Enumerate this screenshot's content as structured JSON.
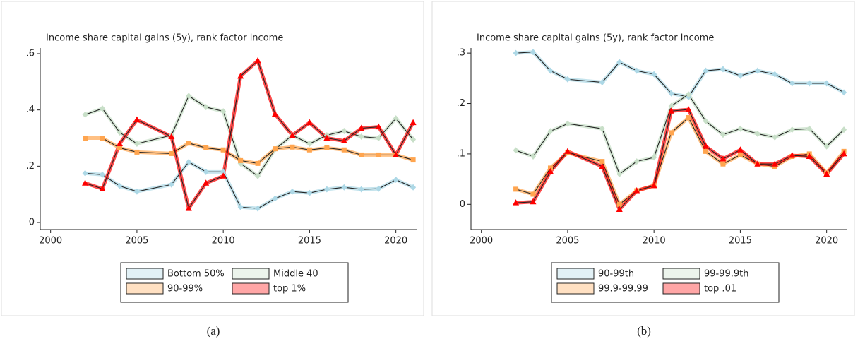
{
  "chart_data": [
    {
      "type": "line",
      "title": "Income share capital gains (5y), rank factor income",
      "panel_label": "(a)",
      "x": [
        2002,
        2003,
        2004,
        2005,
        2007,
        2008,
        2009,
        2010,
        2011,
        2012,
        2013,
        2014,
        2015,
        2016,
        2017,
        2018,
        2019,
        2020,
        2021
      ],
      "xlim": [
        1999.4,
        2021.2
      ],
      "xticks": [
        2000,
        2005,
        2010,
        2015,
        2020
      ],
      "ylim": [
        -0.025,
        0.62
      ],
      "yticks": [
        0,
        {
          "value": 0.2,
          "label": ".2"
        },
        {
          "value": 0.4,
          "label": ".4"
        },
        {
          "value": 0.6,
          "label": ".6"
        }
      ],
      "series": [
        {
          "name": "Bottom 50%",
          "color": "#add8e6",
          "marker": "diamond",
          "values": [
            0.175,
            0.17,
            0.13,
            0.11,
            0.135,
            0.215,
            0.18,
            0.18,
            0.055,
            0.05,
            0.085,
            0.11,
            0.105,
            0.118,
            0.125,
            0.118,
            0.12,
            0.152,
            0.125
          ]
        },
        {
          "name": "Middle 40",
          "color": "#c8dfc8",
          "marker": "diamond",
          "values": [
            0.383,
            0.405,
            0.32,
            0.28,
            0.31,
            0.45,
            0.41,
            0.395,
            0.21,
            0.165,
            0.26,
            0.31,
            0.28,
            0.31,
            0.325,
            0.305,
            0.3,
            0.37,
            0.295
          ]
        },
        {
          "name": "90-99%",
          "color": "#ffa54f",
          "marker": "square",
          "values": [
            0.3,
            0.3,
            0.265,
            0.25,
            0.245,
            0.282,
            0.265,
            0.258,
            0.22,
            0.21,
            0.262,
            0.268,
            0.258,
            0.265,
            0.258,
            0.24,
            0.24,
            0.24,
            0.222
          ]
        },
        {
          "name": "top 1%",
          "color": "#ff0000",
          "marker": "triangle",
          "values": [
            0.14,
            0.12,
            0.28,
            0.365,
            0.305,
            0.05,
            0.14,
            0.165,
            0.52,
            0.575,
            0.385,
            0.31,
            0.355,
            0.3,
            0.29,
            0.335,
            0.34,
            0.24,
            0.355
          ]
        }
      ]
    },
    {
      "type": "line",
      "title": "Income share capital gains (5y), rank factor income",
      "panel_label": "(b)",
      "x": [
        2002,
        2003,
        2004,
        2005,
        2007,
        2008,
        2009,
        2010,
        2011,
        2012,
        2013,
        2014,
        2015,
        2016,
        2017,
        2018,
        2019,
        2020,
        2021
      ],
      "xlim": [
        1999.4,
        2021.2
      ],
      "xticks": [
        2000,
        2005,
        2010,
        2015,
        2020
      ],
      "ylim": [
        -0.05,
        0.31
      ],
      "yticks": [
        0,
        {
          "value": 0.1,
          "label": ".1"
        },
        {
          "value": 0.2,
          "label": ".2"
        },
        {
          "value": 0.3,
          "label": ".3"
        }
      ],
      "series": [
        {
          "name": "90-99th",
          "color": "#add8e6",
          "marker": "diamond",
          "values": [
            0.3,
            0.302,
            0.265,
            0.248,
            0.242,
            0.282,
            0.265,
            0.258,
            0.22,
            0.213,
            0.265,
            0.268,
            0.255,
            0.265,
            0.258,
            0.24,
            0.24,
            0.24,
            0.222
          ]
        },
        {
          "name": "99-99.9th",
          "color": "#c8dfc8",
          "marker": "diamond",
          "values": [
            0.107,
            0.095,
            0.145,
            0.16,
            0.15,
            0.06,
            0.085,
            0.093,
            0.195,
            0.218,
            0.165,
            0.138,
            0.15,
            0.14,
            0.133,
            0.148,
            0.15,
            0.115,
            0.148
          ]
        },
        {
          "name": "99.9-99.99",
          "color": "#ffa54f",
          "marker": "square",
          "values": [
            0.03,
            0.02,
            0.072,
            0.102,
            0.085,
            0.0,
            0.027,
            0.037,
            0.142,
            0.172,
            0.105,
            0.08,
            0.098,
            0.08,
            0.075,
            0.095,
            0.1,
            0.062,
            0.105
          ]
        },
        {
          "name": "top .01",
          "color": "#ff0000",
          "marker": "triangle",
          "values": [
            0.003,
            0.005,
            0.065,
            0.105,
            0.075,
            -0.01,
            0.027,
            0.037,
            0.185,
            0.188,
            0.115,
            0.09,
            0.108,
            0.08,
            0.08,
            0.097,
            0.095,
            0.06,
            0.1
          ]
        }
      ]
    }
  ]
}
